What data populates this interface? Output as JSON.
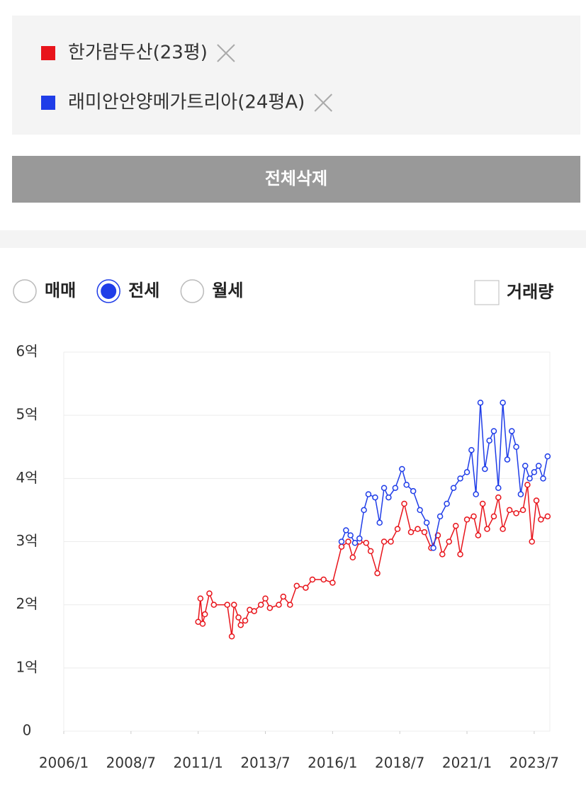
{
  "ui": {
    "delete_all_button": "전체삭제",
    "trade_options": [
      {
        "label": "매매",
        "checked": false
      },
      {
        "label": "전세",
        "checked": true
      },
      {
        "label": "월세",
        "checked": false
      }
    ],
    "volume_checkbox": {
      "label": "거래량",
      "checked": false
    }
  },
  "chart_data": {
    "type": "line",
    "series": [
      {
        "name": "한가람두산(23평)",
        "color": "#e8141b",
        "x": [
          "2011/1",
          "2011/2",
          "2011/3",
          "2011/4",
          "2011/6",
          "2011/8",
          "2012/2",
          "2012/4",
          "2012/5",
          "2012/7",
          "2012/8",
          "2012/10",
          "2012/12",
          "2013/2",
          "2013/5",
          "2013/7",
          "2013/9",
          "2014/1",
          "2014/3",
          "2014/6",
          "2014/9",
          "2015/1",
          "2015/4",
          "2015/9",
          "2016/1",
          "2016/5",
          "2016/8",
          "2016/10",
          "2017/1",
          "2017/4",
          "2017/6",
          "2017/9",
          "2017/12",
          "2018/3",
          "2018/6",
          "2018/9",
          "2018/12",
          "2019/3",
          "2019/6",
          "2019/9",
          "2019/12",
          "2020/2",
          "2020/5",
          "2020/8",
          "2020/10",
          "2021/1",
          "2021/4",
          "2021/6",
          "2021/8",
          "2021/10",
          "2022/1",
          "2022/3",
          "2022/5",
          "2022/8",
          "2022/11",
          "2023/2",
          "2023/4",
          "2023/6",
          "2023/8",
          "2023/10",
          "2024/1"
        ],
        "values": [
          1.73,
          2.1,
          1.7,
          1.85,
          2.18,
          2.0,
          2.0,
          1.5,
          2.0,
          1.8,
          1.68,
          1.75,
          1.92,
          1.9,
          2.0,
          2.1,
          1.95,
          2.0,
          2.13,
          2.0,
          2.3,
          2.27,
          2.4,
          2.4,
          2.35,
          2.92,
          3.0,
          2.75,
          3.0,
          2.98,
          2.85,
          2.5,
          3.0,
          3.0,
          3.2,
          3.6,
          3.15,
          3.2,
          3.15,
          2.9,
          3.1,
          2.8,
          3.0,
          3.25,
          2.8,
          3.35,
          3.4,
          3.1,
          3.6,
          3.2,
          3.4,
          3.7,
          3.2,
          3.5,
          3.45,
          3.5,
          3.9,
          3.0,
          3.65,
          3.35,
          3.4
        ]
      },
      {
        "name": "래미안안양메가트리아(24평A)",
        "color": "#1f3de8",
        "x": [
          "2016/5",
          "2016/7",
          "2016/9",
          "2016/11",
          "2017/1",
          "2017/3",
          "2017/5",
          "2017/8",
          "2017/10",
          "2017/12",
          "2018/2",
          "2018/5",
          "2018/8",
          "2018/10",
          "2019/1",
          "2019/4",
          "2019/7",
          "2019/10",
          "2020/1",
          "2020/4",
          "2020/7",
          "2020/10",
          "2021/1",
          "2021/3",
          "2021/5",
          "2021/7",
          "2021/9",
          "2021/11",
          "2022/1",
          "2022/3",
          "2022/5",
          "2022/7",
          "2022/9",
          "2022/11",
          "2023/1",
          "2023/3",
          "2023/5",
          "2023/7",
          "2023/9",
          "2023/11",
          "2024/1"
        ],
        "values": [
          3.0,
          3.18,
          3.1,
          2.98,
          3.05,
          3.5,
          3.75,
          3.7,
          3.3,
          3.85,
          3.7,
          3.85,
          4.15,
          3.9,
          3.8,
          3.5,
          3.3,
          2.9,
          3.4,
          3.6,
          3.85,
          4.0,
          4.1,
          4.45,
          3.75,
          5.2,
          4.15,
          4.6,
          4.75,
          3.85,
          5.2,
          4.3,
          4.75,
          4.5,
          3.75,
          4.2,
          4.0,
          4.1,
          4.2,
          4.0,
          4.35
        ]
      }
    ],
    "xlim": [
      "2006/1",
      "2024/2"
    ],
    "xticks": [
      "2006/1",
      "2008/7",
      "2011/1",
      "2013/7",
      "2016/1",
      "2018/7",
      "2021/1",
      "2023/7"
    ],
    "ylim": [
      0,
      6
    ],
    "yticks": [
      0,
      {
        "value": 1,
        "label": "1억"
      },
      {
        "value": 2,
        "label": "2억"
      },
      {
        "value": 3,
        "label": "3억"
      },
      {
        "value": 4,
        "label": "4억"
      },
      {
        "value": 5,
        "label": "5억"
      },
      {
        "value": 6,
        "label": "6억"
      }
    ],
    "grid": true
  }
}
